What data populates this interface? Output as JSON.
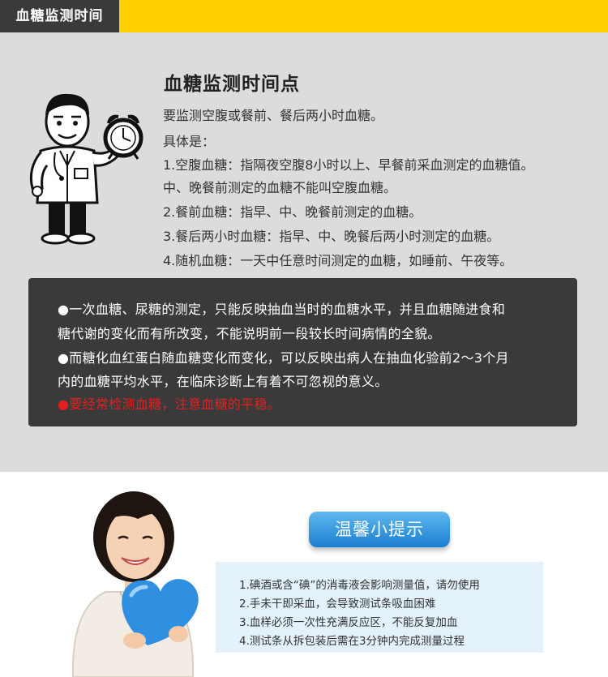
{
  "header": {
    "tab_label": "血糖监测时间"
  },
  "colors": {
    "accent_yellow": "#ffd000",
    "tab_dark": "#3a3a3a",
    "panel_gray": "#dcdcdc",
    "warning_red": "#e2201f",
    "badge_blue": "#1a7fd0"
  },
  "monitor": {
    "title": "血糖监测时间点",
    "lines": [
      "要监测空腹或餐前、餐后两小时血糖。",
      "具体是：",
      "1.空腹血糖：指隔夜空腹8小时以上、早餐前采血测定的血糖值。",
      "中、晚餐前测定的血糖不能叫空腹血糖。",
      "2.餐前血糖：指早、中、晚餐前测定的血糖。",
      "3.餐后两小时血糖：指早、中、晚餐后两小时测定的血糖。",
      "4.随机血糖：一天中任意时间测定的血糖，如睡前、午夜等。"
    ]
  },
  "notes": {
    "lines": [
      "●一次血糖、尿糖的测定，只能反映抽血当时的血糖水平，并且血糖随进食和",
      "糖代谢的变化而有所改变，不能说明前一段较长时间病情的全貌。",
      "●而糖化血红蛋白随血糖变化而变化，可以反映出病人在抽血化验前2～3个月",
      "内的血糖平均水平，在临床诊断上有着不可忽视的意义。"
    ],
    "warning": "●要经常检测血糖，注意血糖的平稳。"
  },
  "tips": {
    "badge": "温馨小提示",
    "items": [
      "1.碘酒或含“碘”的消毒液会影响测量值，请勿使用",
      "2.手未干即采血，会导致测试条吸血困难",
      "3.血样必须一次性充满反应区，不能反复加血",
      "4.测试条从拆包装后需在3分钟内完成测量过程"
    ]
  }
}
